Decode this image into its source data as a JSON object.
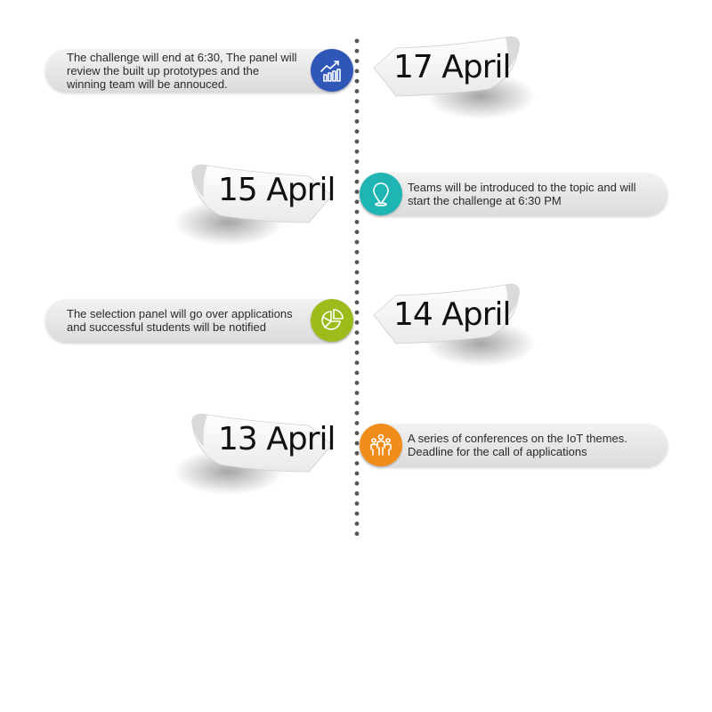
{
  "events": [
    {
      "date": "17 April",
      "description": "The challenge will end at 6:30, The panel will review the built up prototypes and the winning team will be annouced.",
      "icon": "growth-chart-icon",
      "color": "#2f57b8",
      "side": "left"
    },
    {
      "date": "15 April",
      "description": "Teams will be introduced to the topic and will start the challenge at 6:30 PM",
      "icon": "location-pin-icon",
      "color": "#1fb5b3",
      "side": "right"
    },
    {
      "date": "14 April",
      "description": "The selection panel will go over applications and successful students will be notified",
      "icon": "pie-chart-icon",
      "color": "#9cbc1c",
      "side": "left"
    },
    {
      "date": "13 April",
      "description": "A series of conferences on the IoT themes. Deadline for the call of applications",
      "icon": "people-group-icon",
      "color": "#ef8c1a",
      "side": "right"
    }
  ],
  "timeline_color": "#555555"
}
